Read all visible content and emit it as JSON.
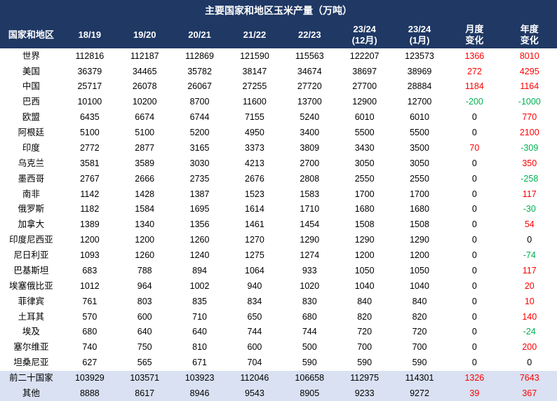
{
  "title": "主要国家和地区玉米产量（万吨）",
  "colors": {
    "header_bg": "#1f3864",
    "header_text": "#ffffff",
    "summary_bg": "#d9e1f2",
    "normal_bg": "#ffffff",
    "pos": "#ff0000",
    "neg": "#00b050",
    "zero": "#000000"
  },
  "col_widths": [
    "86",
    "76",
    "76",
    "76",
    "76",
    "76",
    "76",
    "76",
    "76",
    "76"
  ],
  "columns": [
    "国家和地区",
    "18/19",
    "19/20",
    "20/21",
    "21/22",
    "22/23",
    "23/24\n(12月)",
    "23/24\n(1月)",
    "月度\n变化",
    "年度\n变化"
  ],
  "rows": [
    {
      "r": "世界",
      "c": [
        "112816",
        "112187",
        "112869",
        "121590",
        "115563",
        "122207",
        "123573",
        "1366",
        "8010"
      ],
      "s": 0
    },
    {
      "r": "美国",
      "c": [
        "36379",
        "34465",
        "35782",
        "38147",
        "34674",
        "38697",
        "38969",
        "272",
        "4295"
      ],
      "s": 0
    },
    {
      "r": "中国",
      "c": [
        "25717",
        "26078",
        "26067",
        "27255",
        "27720",
        "27700",
        "28884",
        "1184",
        "1164"
      ],
      "s": 0
    },
    {
      "r": "巴西",
      "c": [
        "10100",
        "10200",
        "8700",
        "11600",
        "13700",
        "12900",
        "12700",
        "-200",
        "-1000"
      ],
      "s": 0
    },
    {
      "r": "欧盟",
      "c": [
        "6435",
        "6674",
        "6744",
        "7155",
        "5240",
        "6010",
        "6010",
        "0",
        "770"
      ],
      "s": 0
    },
    {
      "r": "阿根廷",
      "c": [
        "5100",
        "5100",
        "5200",
        "4950",
        "3400",
        "5500",
        "5500",
        "0",
        "2100"
      ],
      "s": 0
    },
    {
      "r": "印度",
      "c": [
        "2772",
        "2877",
        "3165",
        "3373",
        "3809",
        "3430",
        "3500",
        "70",
        "-309"
      ],
      "s": 0
    },
    {
      "r": "乌克兰",
      "c": [
        "3581",
        "3589",
        "3030",
        "4213",
        "2700",
        "3050",
        "3050",
        "0",
        "350"
      ],
      "s": 0
    },
    {
      "r": "墨西哥",
      "c": [
        "2767",
        "2666",
        "2735",
        "2676",
        "2808",
        "2550",
        "2550",
        "0",
        "-258"
      ],
      "s": 0
    },
    {
      "r": "南非",
      "c": [
        "1142",
        "1428",
        "1387",
        "1523",
        "1583",
        "1700",
        "1700",
        "0",
        "117"
      ],
      "s": 0
    },
    {
      "r": "俄罗斯",
      "c": [
        "1182",
        "1584",
        "1695",
        "1614",
        "1710",
        "1680",
        "1680",
        "0",
        "-30"
      ],
      "s": 0
    },
    {
      "r": "加拿大",
      "c": [
        "1389",
        "1340",
        "1356",
        "1461",
        "1454",
        "1508",
        "1508",
        "0",
        "54"
      ],
      "s": 0
    },
    {
      "r": "印度尼西亚",
      "c": [
        "1200",
        "1200",
        "1260",
        "1270",
        "1290",
        "1290",
        "1290",
        "0",
        "0"
      ],
      "s": 0
    },
    {
      "r": "尼日利亚",
      "c": [
        "1093",
        "1260",
        "1240",
        "1275",
        "1274",
        "1200",
        "1200",
        "0",
        "-74"
      ],
      "s": 0
    },
    {
      "r": "巴基斯坦",
      "c": [
        "683",
        "788",
        "894",
        "1064",
        "933",
        "1050",
        "1050",
        "0",
        "117"
      ],
      "s": 0
    },
    {
      "r": "埃塞俄比亚",
      "c": [
        "1012",
        "964",
        "1002",
        "940",
        "1020",
        "1040",
        "1040",
        "0",
        "20"
      ],
      "s": 0
    },
    {
      "r": "菲律宾",
      "c": [
        "761",
        "803",
        "835",
        "834",
        "830",
        "840",
        "840",
        "0",
        "10"
      ],
      "s": 0
    },
    {
      "r": "土耳其",
      "c": [
        "570",
        "600",
        "710",
        "650",
        "680",
        "820",
        "820",
        "0",
        "140"
      ],
      "s": 0
    },
    {
      "r": "埃及",
      "c": [
        "680",
        "640",
        "640",
        "744",
        "744",
        "720",
        "720",
        "0",
        "-24"
      ],
      "s": 0
    },
    {
      "r": "塞尔维亚",
      "c": [
        "740",
        "750",
        "810",
        "600",
        "500",
        "700",
        "700",
        "0",
        "200"
      ],
      "s": 0
    },
    {
      "r": "坦桑尼亚",
      "c": [
        "627",
        "565",
        "671",
        "704",
        "590",
        "590",
        "590",
        "0",
        "0"
      ],
      "s": 0
    },
    {
      "r": "前二十国家",
      "c": [
        "103929",
        "103571",
        "103923",
        "112046",
        "106658",
        "112975",
        "114301",
        "1326",
        "7643"
      ],
      "s": 1
    },
    {
      "r": "其他",
      "c": [
        "8888",
        "8617",
        "8946",
        "9543",
        "8905",
        "9233",
        "9272",
        "39",
        "367"
      ],
      "s": 1
    }
  ]
}
